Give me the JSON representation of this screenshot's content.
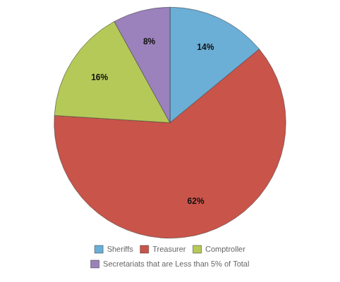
{
  "chart_data": {
    "type": "pie",
    "categories": [
      "Sheriffs",
      "Treasurer",
      "Comptroller",
      "Secretariats that are Less than 5% of Total"
    ],
    "values": [
      14,
      62,
      16,
      8
    ],
    "value_labels": [
      "14%",
      "62%",
      "16%",
      "8%"
    ],
    "colors": [
      "#6baed6",
      "#c9544a",
      "#b5c959",
      "#9b82bc"
    ],
    "data_labels": true,
    "legend": "bottom"
  }
}
